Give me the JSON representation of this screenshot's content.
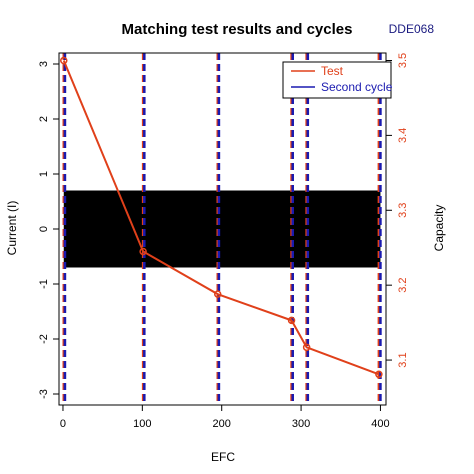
{
  "chart_data": {
    "type": "line",
    "title": "Matching test results and cycles",
    "tag": "DDE068",
    "xlabel": "EFC",
    "ylabel_left": "Current (I)",
    "ylabel_right": "Capacity",
    "xlim": [
      -5,
      407
    ],
    "ylim_left": [
      -3.2,
      3.2
    ],
    "ylim_right": [
      3.04,
      3.51
    ],
    "x_ticks": [
      0,
      100,
      200,
      300,
      400
    ],
    "x_tick_labels": [
      "0",
      "100",
      "200",
      "300",
      "400"
    ],
    "y_left_ticks": [
      3,
      2,
      1,
      0,
      -1,
      -2,
      -3
    ],
    "y_left_tick_labels": [
      "3",
      "2",
      "1",
      "0",
      "-1",
      "-2",
      "-3"
    ],
    "y_right_ticks": [
      3.5,
      3.4,
      3.3,
      3.2,
      3.1
    ],
    "y_right_tick_labels": [
      "3.5",
      "3.4",
      "3.3",
      "3.2",
      "3.1"
    ],
    "current_band": [
      -0.7,
      0.7
    ],
    "series": [
      {
        "name": "Test",
        "color": "#e0401a",
        "axis": "right",
        "x": [
          1,
          101,
          195,
          288,
          307,
          398
        ],
        "y": [
          3.5,
          3.245,
          3.188,
          3.153,
          3.117,
          3.081
        ]
      }
    ],
    "vertical_lines": {
      "test_x": [
        1,
        101,
        195,
        288,
        307,
        398
      ],
      "cycle_x": [
        2.5,
        102.5,
        196.5,
        289.5,
        308.5,
        400
      ],
      "test_color": "#e0401a",
      "cycle_color": "#1a1ab0"
    },
    "legend": {
      "position": "top-right",
      "entries": [
        {
          "label": "Test",
          "color": "#e0401a"
        },
        {
          "label": "Second cycle",
          "color": "#1a1ab0"
        }
      ]
    },
    "colors": {
      "tag": "#1a1a80",
      "right_axis": "#e0401a",
      "band": "#000000"
    }
  }
}
